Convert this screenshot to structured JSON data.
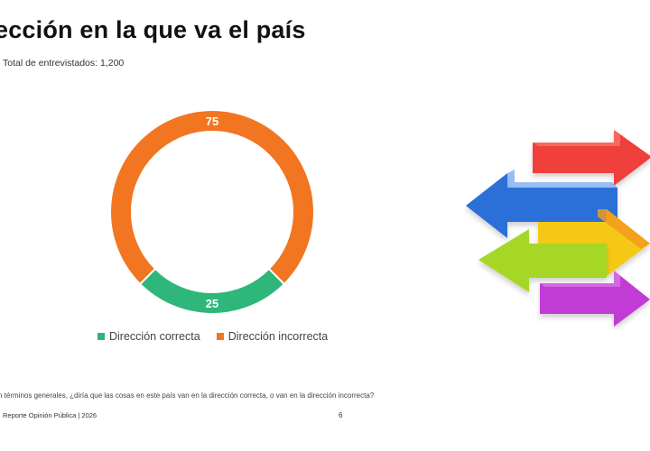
{
  "header": {
    "title": "ección en la que va el país",
    "subtitle": "Total de entrevistados: 1,200"
  },
  "chart_data": {
    "type": "pie",
    "donut": true,
    "categories": [
      "Dirección correcta",
      "Dirección incorrecta"
    ],
    "values": [
      25,
      75
    ],
    "colors": [
      "#2fb67a",
      "#f27521"
    ],
    "legend_position": "bottom"
  },
  "footer": {
    "question": "n términos generales, ¿diría que las cosas en este país van en la dirección correcta, o van en la dirección incorrecta?",
    "source": "Reporte  Opinión Pública | 2026",
    "page_number": "6"
  },
  "illustration": {
    "icon": "multicolor-arrows-icon"
  }
}
